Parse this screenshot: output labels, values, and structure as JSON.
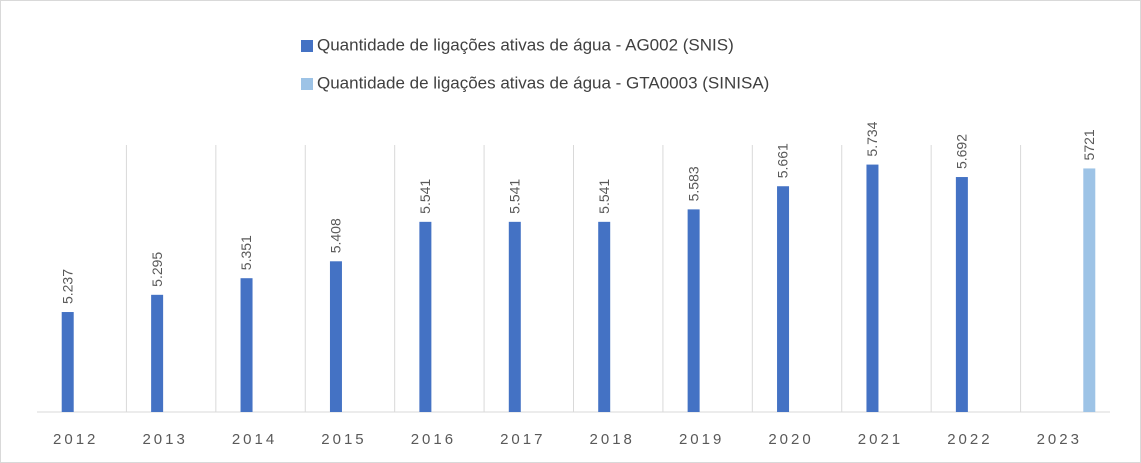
{
  "chart_data": {
    "type": "bar",
    "categories": [
      "2012",
      "2013",
      "2014",
      "2015",
      "2016",
      "2017",
      "2018",
      "2019",
      "2020",
      "2021",
      "2022",
      "2023"
    ],
    "series": [
      {
        "name": "Quantidade de ligações ativas de água - AG002 (SNIS)",
        "color": "#4472c4",
        "values": [
          5237,
          5295,
          5351,
          5408,
          5541,
          5541,
          5541,
          5583,
          5661,
          5734,
          5692,
          null
        ],
        "value_labels": [
          "5.237",
          "5.295",
          "5.351",
          "5.408",
          "5.541",
          "5.541",
          "5.541",
          "5.583",
          "5.661",
          "5.734",
          "5.692",
          null
        ]
      },
      {
        "name": "Quantidade de ligações ativas de água - GTA0003  (SINISA)",
        "color": "#9dc3e6",
        "values": [
          null,
          null,
          null,
          null,
          null,
          null,
          null,
          null,
          null,
          null,
          null,
          5721
        ]
      }
    ],
    "ylim": [
      4900,
      5800
    ],
    "grid": true,
    "legend": "top"
  }
}
